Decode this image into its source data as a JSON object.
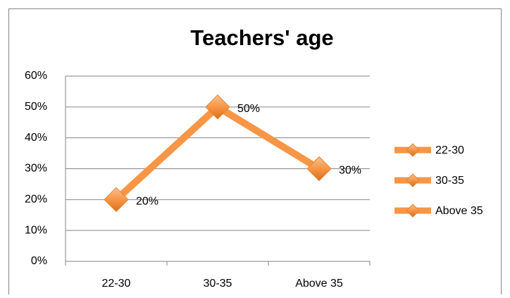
{
  "chart_data": {
    "type": "line",
    "title": "Teachers' age",
    "categories": [
      "22-30",
      "30-35",
      "Above 35"
    ],
    "values": [
      20,
      50,
      30
    ],
    "value_labels": [
      "20%",
      "50%",
      "30%"
    ],
    "color": "#f79646",
    "ylim": [
      0,
      60
    ],
    "yticks": [
      {
        "value": 0,
        "label": "0%"
      },
      {
        "value": 10,
        "label": "10%"
      },
      {
        "value": 20,
        "label": "20%"
      },
      {
        "value": 30,
        "label": "30%"
      },
      {
        "value": 40,
        "label": "40%"
      },
      {
        "value": 50,
        "label": "50%"
      },
      {
        "value": 60,
        "label": "60%"
      }
    ],
    "grid": true,
    "legend": "right"
  }
}
